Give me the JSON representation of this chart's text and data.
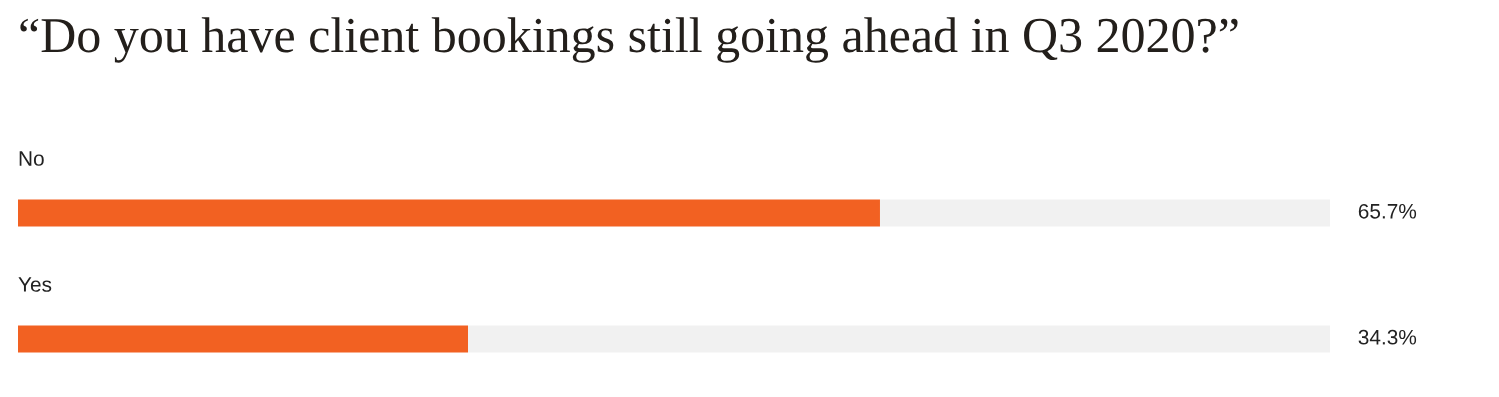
{
  "chart_data": {
    "type": "bar",
    "orientation": "horizontal",
    "stacked": true,
    "title": "“Do you have client bookings still going ahead in Q3 2020?”",
    "categories": [
      "No",
      "Yes"
    ],
    "series": [
      {
        "color": "#f26122",
        "values": [
          65.7,
          34.3
        ],
        "value_labels": [
          "65.7%",
          "34.3%"
        ]
      },
      {
        "color": "#f1f1f1",
        "values": [
          34.3,
          65.7
        ]
      }
    ],
    "xlim": [
      0,
      100
    ],
    "tick_labels": false
  }
}
